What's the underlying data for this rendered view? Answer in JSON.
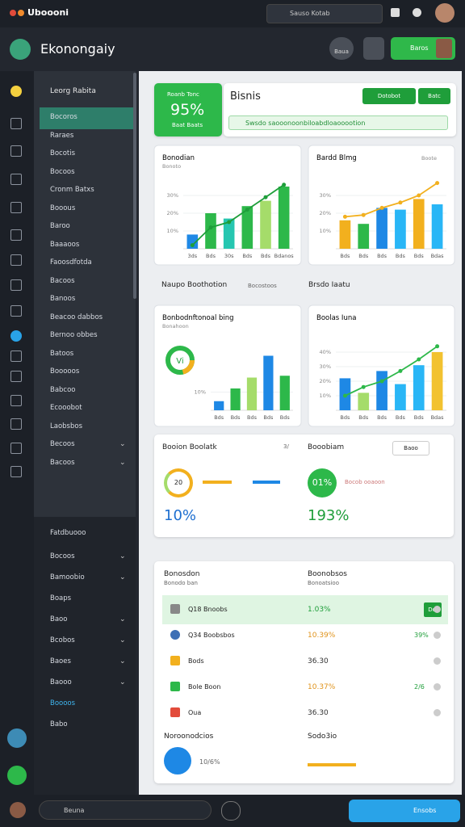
{
  "app": {
    "title": "Uboooni",
    "search": "Sauso Kotab"
  },
  "header": {
    "title": "Ekonongaiy",
    "button_1": "Baua",
    "button_2": "Baros"
  },
  "sidebar": {
    "heading": "Leorg Rabita",
    "items": [
      "Bocoros",
      "Raraes",
      "Bocotis",
      "Bocoos",
      "Cronm Batxs",
      "Booous",
      "Baroo",
      "Baaaoos",
      "Faoosdfotda",
      "Bacoos",
      "Banoos",
      "Beacoo dabbos",
      "Bernoo obbes",
      "Batoos",
      "Booooos",
      "Babcoo",
      "Ecooobot",
      "Laobsbos",
      "Becoos",
      "Bacoos"
    ],
    "section_2": "Fatdbuooo",
    "items_2": [
      "Bocoos",
      "Bamoobio",
      "Boaps",
      "Baoo",
      "Bcobos",
      "Baoes",
      "Baooo",
      "Boooos",
      "Babo"
    ]
  },
  "kpi": {
    "label": "Roanb Tonc",
    "value": "95%",
    "sub": "Baat Baats"
  },
  "bisnis": {
    "title": "Bisnis",
    "button_1": "Dotobot",
    "button_2": "Batc",
    "notice": "Swsdo saooonoonbiloabdloaooootion"
  },
  "sections": {
    "left": "Naupo Boothotion",
    "left_sub": "Bocostoos",
    "right": "Brsdo Iaatu"
  },
  "charts": [
    {
      "title": "Bonodian",
      "subtitle": "Bonoto",
      "ylim": [
        0,
        40
      ],
      "yticks": [
        {
          "value": 10,
          "label": "10%"
        },
        {
          "value": 20,
          "label": "20%"
        },
        {
          "value": 30,
          "label": "30%"
        }
      ],
      "categories": [
        "3ds",
        "Bds",
        "30s",
        "Bds",
        "Bds",
        "Bdanos"
      ],
      "values": [
        8,
        20,
        17,
        24,
        27,
        35
      ],
      "colors": [
        "#1e88e5",
        "#2db84a",
        "#26c6b0",
        "#2db84a",
        "#a5dc6a",
        "#2db84a"
      ],
      "line": {
        "color": "#1e9e3a",
        "values": [
          2,
          12,
          15,
          22,
          29,
          36
        ]
      }
    },
    {
      "title": "Bardd Blmg",
      "subtitle": "Boote",
      "ylim": [
        0,
        40
      ],
      "yticks": [
        {
          "value": 10,
          "label": "10%"
        },
        {
          "value": 20,
          "label": "20%"
        },
        {
          "value": 30,
          "label": "30%"
        }
      ],
      "categories": [
        "Bds",
        "Bds",
        "Bds",
        "Bds",
        "Bds",
        "Bdas"
      ],
      "values": [
        16,
        14,
        23,
        22,
        28,
        25
      ],
      "colors": [
        "#f2b01e",
        "#2db84a",
        "#1e88e5",
        "#29b6f6",
        "#f2b01e",
        "#29b6f6"
      ],
      "line": {
        "color": "#f2b01e",
        "values": [
          18,
          19,
          23,
          26,
          30,
          37
        ]
      }
    },
    {
      "title": "Bonbodnftonoal bing",
      "subtitle": "Bonahoon",
      "ylim": [
        0,
        40
      ],
      "yticks": [
        {
          "value": 10,
          "label": "10%"
        }
      ],
      "categories": [
        "Bds",
        "Bds",
        "Bds",
        "Bds",
        "Bds"
      ],
      "values": [
        5,
        12,
        18,
        30,
        19
      ],
      "colors": [
        "#1e88e5",
        "#2db84a",
        "#a5dc6a",
        "#1e88e5",
        "#2db84a"
      ],
      "donut": "Vi"
    },
    {
      "title": "Boolas Iuna",
      "subtitle": "",
      "ylim": [
        0,
        50
      ],
      "yticks": [
        {
          "value": 10,
          "label": "10%"
        },
        {
          "value": 20,
          "label": "20%"
        },
        {
          "value": 30,
          "label": "30%"
        },
        {
          "value": 40,
          "label": "40%"
        }
      ],
      "categories": [
        "Bds",
        "Bds",
        "Bds",
        "Bds",
        "Bds",
        "Bdas"
      ],
      "values": [
        22,
        12,
        27,
        18,
        31,
        40
      ],
      "colors": [
        "#1e88e5",
        "#a5dc6a",
        "#1e88e5",
        "#29b6f6",
        "#29b6f6",
        "#f2c230"
      ],
      "line": {
        "color": "#2db84a",
        "values": [
          10,
          16,
          20,
          27,
          35,
          44
        ]
      }
    }
  ],
  "mini": {
    "left_title": "Booion Boolatk",
    "left_badge": "3/",
    "left_ring": "20",
    "left_value": "10%",
    "right_title": "Booobiam",
    "right_button": "Baoo",
    "right_ring": "01%",
    "right_note": "Bocob ooaoon",
    "right_value": "193%"
  },
  "table": {
    "left_title": "Bonosdon",
    "left_sub": "Bonodo ban",
    "right_title": "Boonobsos",
    "right_sub": "Bonoatsioo",
    "rows": [
      {
        "name": "Q18 Bnoobs",
        "value": "1.03%",
        "extra": "Dol"
      },
      {
        "name": "Q34 Boobsbos",
        "value": "10.39%",
        "extra": "39%"
      },
      {
        "name": "Bods",
        "value": "36.30"
      },
      {
        "name": "Bole Boon",
        "value": "10.37%",
        "extra": "2/6"
      },
      {
        "name": "Oua",
        "value": "36.30"
      }
    ],
    "footer_left": "Noroonodcios",
    "footer_value": "10/6%",
    "footer_right": "Sodo3io"
  },
  "bottom": {
    "input": "Beuna",
    "button": "Ensobs"
  }
}
